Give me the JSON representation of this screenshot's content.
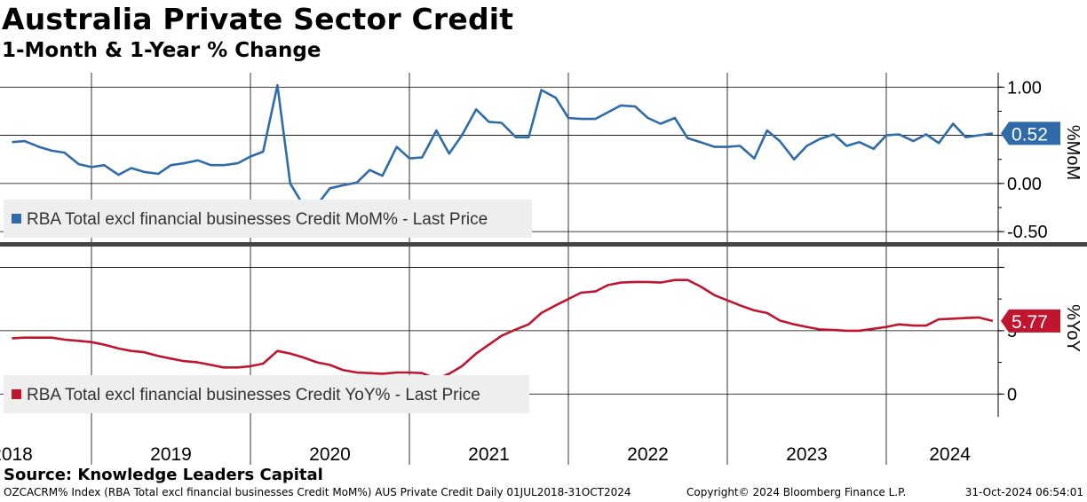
{
  "title": "Australia Private Sector Credit",
  "subtitle": "1-Month & 1-Year % Change",
  "source": "Source: Knowledge Leaders Capital",
  "footer": {
    "left": "OZCACRM% Index (RBA Total excl financial businesses Credit MoM%) AUS Private Credit  Daily 01JUL2018-31OCT2024",
    "middle": "Copyright© 2024 Bloomberg Finance L.P.",
    "right": "31-Oct-2024 06:54:01"
  },
  "colors": {
    "mom": "#2f6ba8",
    "yoy": "#c0152f",
    "divider": "#444444",
    "grid": "#000000"
  },
  "chart_data": [
    {
      "type": "line",
      "name": "mom_panel",
      "legend": "RBA Total excl financial businesses Credit MoM% - Last Price",
      "axis_label": "%MoM",
      "last_value_label": "0.52",
      "last_value": 0.52,
      "ylim": [
        -0.6,
        1.15
      ],
      "y_ticks": [
        1.0,
        0.5,
        0.0,
        -0.5
      ],
      "y_tick_labels": [
        "1.00",
        "",
        "0.00",
        "-0.50"
      ],
      "series": [
        {
          "name": "MoM",
          "x": [
            2018.5,
            2018.58,
            2018.67,
            2018.75,
            2018.83,
            2018.92,
            2019.0,
            2019.08,
            2019.17,
            2019.25,
            2019.33,
            2019.42,
            2019.5,
            2019.58,
            2019.67,
            2019.75,
            2019.83,
            2019.92,
            2020.0,
            2020.08,
            2020.17,
            2020.25,
            2020.33,
            2020.42,
            2020.5,
            2020.58,
            2020.67,
            2020.75,
            2020.83,
            2020.92,
            2021.0,
            2021.08,
            2021.17,
            2021.25,
            2021.33,
            2021.42,
            2021.5,
            2021.58,
            2021.67,
            2021.75,
            2021.83,
            2021.92,
            2022.0,
            2022.08,
            2022.17,
            2022.25,
            2022.33,
            2022.42,
            2022.5,
            2022.58,
            2022.67,
            2022.75,
            2022.83,
            2022.92,
            2023.0,
            2023.08,
            2023.17,
            2023.25,
            2023.33,
            2023.42,
            2023.5,
            2023.58,
            2023.67,
            2023.75,
            2023.83,
            2023.92,
            2024.0,
            2024.08,
            2024.17,
            2024.25,
            2024.33,
            2024.42,
            2024.5,
            2024.58,
            2024.67
          ],
          "values": [
            0.43,
            0.44,
            0.38,
            0.34,
            0.32,
            0.2,
            0.17,
            0.19,
            0.09,
            0.16,
            0.12,
            0.1,
            0.19,
            0.21,
            0.24,
            0.19,
            0.19,
            0.21,
            0.28,
            0.33,
            1.02,
            0.0,
            -0.22,
            -0.22,
            -0.05,
            -0.02,
            0.01,
            0.14,
            0.08,
            0.38,
            0.26,
            0.27,
            0.55,
            0.31,
            0.5,
            0.77,
            0.64,
            0.63,
            0.48,
            0.48,
            0.97,
            0.89,
            0.68,
            0.67,
            0.67,
            0.74,
            0.81,
            0.8,
            0.68,
            0.62,
            0.68,
            0.47,
            0.43,
            0.38,
            0.38,
            0.39,
            0.26,
            0.55,
            0.44,
            0.25,
            0.39,
            0.46,
            0.51,
            0.39,
            0.43,
            0.36,
            0.5,
            0.51,
            0.44,
            0.51,
            0.42,
            0.62,
            0.48,
            0.5,
            0.52
          ]
        }
      ]
    },
    {
      "type": "line",
      "name": "yoy_panel",
      "legend": "RBA Total excl financial businesses Credit YoY% - Last Price",
      "axis_label": "%YoY",
      "last_value_label": "5.77",
      "last_value": 5.77,
      "ylim": [
        -1.8,
        11.5
      ],
      "y_ticks": [
        10,
        5,
        0
      ],
      "y_tick_labels": [
        "",
        "5",
        "0"
      ],
      "series": [
        {
          "name": "YoY",
          "x": [
            2018.5,
            2018.58,
            2018.67,
            2018.75,
            2018.83,
            2018.92,
            2019.0,
            2019.08,
            2019.17,
            2019.25,
            2019.33,
            2019.42,
            2019.5,
            2019.58,
            2019.67,
            2019.75,
            2019.83,
            2019.92,
            2020.0,
            2020.08,
            2020.17,
            2020.25,
            2020.33,
            2020.42,
            2020.5,
            2020.58,
            2020.67,
            2020.75,
            2020.83,
            2020.92,
            2021.0,
            2021.08,
            2021.17,
            2021.25,
            2021.33,
            2021.42,
            2021.5,
            2021.58,
            2021.67,
            2021.75,
            2021.83,
            2021.92,
            2022.0,
            2022.08,
            2022.17,
            2022.25,
            2022.33,
            2022.42,
            2022.5,
            2022.58,
            2022.67,
            2022.75,
            2022.83,
            2022.92,
            2023.0,
            2023.08,
            2023.17,
            2023.25,
            2023.33,
            2023.42,
            2023.5,
            2023.58,
            2023.67,
            2023.75,
            2023.83,
            2023.92,
            2024.0,
            2024.08,
            2024.17,
            2024.25,
            2024.33,
            2024.42,
            2024.5,
            2024.58,
            2024.67
          ],
          "values": [
            4.4,
            4.45,
            4.45,
            4.45,
            4.3,
            4.2,
            4.1,
            3.9,
            3.6,
            3.4,
            3.3,
            3.0,
            2.8,
            2.6,
            2.5,
            2.3,
            2.1,
            2.1,
            2.2,
            2.4,
            3.4,
            3.2,
            2.9,
            2.5,
            2.3,
            1.9,
            1.7,
            1.65,
            1.6,
            1.7,
            1.7,
            1.65,
            1.2,
            1.6,
            2.2,
            3.2,
            3.9,
            4.6,
            5.1,
            5.5,
            6.4,
            7.0,
            7.5,
            8.0,
            8.1,
            8.6,
            8.8,
            8.85,
            8.85,
            8.8,
            9.0,
            9.0,
            8.5,
            7.8,
            7.4,
            7.0,
            6.6,
            6.4,
            5.8,
            5.5,
            5.3,
            5.1,
            5.05,
            5.0,
            5.0,
            5.15,
            5.3,
            5.5,
            5.4,
            5.4,
            5.9,
            5.95,
            6.0,
            6.05,
            5.77
          ]
        }
      ]
    }
  ],
  "x_axis": {
    "ticks": [
      2018,
      2019,
      2020,
      2021,
      2022,
      2023,
      2024,
      2025
    ],
    "labels": [
      {
        "year": 2018.5,
        "text": "2018"
      },
      {
        "year": 2019.5,
        "text": "2019"
      },
      {
        "year": 2020.5,
        "text": "2020"
      },
      {
        "year": 2021.5,
        "text": "2021"
      },
      {
        "year": 2022.5,
        "text": "2022"
      },
      {
        "year": 2023.5,
        "text": "2023"
      },
      {
        "year": 2024.4,
        "text": "2024"
      }
    ]
  }
}
